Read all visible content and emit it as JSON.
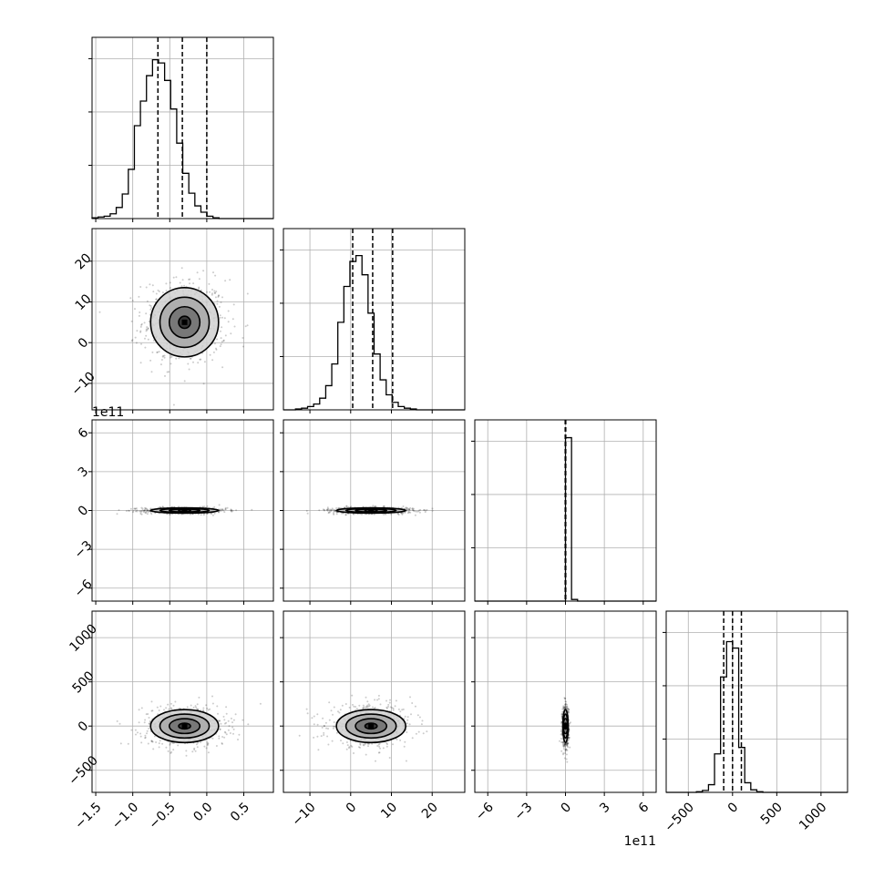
{
  "chart_data": {
    "type": "corner",
    "params": [
      {
        "range": [
          -1.55,
          0.9
        ],
        "ticks": [
          -1.5,
          -1.0,
          -0.5,
          0.0,
          0.5
        ],
        "tick_labels": [
          "−1.5",
          "−1.0",
          "−0.5",
          "0.0",
          "0.5"
        ],
        "quantiles": [
          -0.66,
          -0.33,
          0.0
        ],
        "median": -0.33,
        "center": -0.3,
        "hist_edges_start": -1.55,
        "hist_bin_width": 0.0817,
        "hist_counts": [
          1,
          2,
          3,
          6,
          14,
          31,
          62,
          117,
          148,
          180,
          200,
          196,
          174,
          138,
          95,
          57,
          32,
          16,
          8,
          3,
          1,
          0,
          0,
          0,
          0,
          0,
          0,
          0,
          0,
          0
        ],
        "hist_max": 210
      },
      {
        "range": [
          -16.5,
          28
        ],
        "ticks": [
          -10,
          0,
          10,
          20
        ],
        "tick_labels": [
          "−10",
          "0",
          "10",
          "20"
        ],
        "quantiles": [
          0.5,
          5.4,
          10.3
        ],
        "median": 5.4,
        "center": 5.0,
        "hist_edges_start": -16.5,
        "hist_bin_width": 1.483,
        "hist_counts": [
          0,
          0,
          1,
          2,
          4,
          7,
          14,
          29,
          55,
          105,
          148,
          178,
          185,
          162,
          116,
          67,
          36,
          18,
          9,
          4,
          2,
          1,
          0,
          0,
          0,
          0,
          0,
          0,
          0,
          0
        ],
        "hist_max": 200
      },
      {
        "range": [
          -7.0,
          7.0
        ],
        "ticks": [
          -6,
          -3,
          0,
          3,
          6
        ],
        "tick_labels": [
          "−6",
          "−3",
          "0",
          "3",
          "6"
        ],
        "offset": "1e11",
        "quantiles": [
          -0.02,
          0.0,
          0.02
        ],
        "median": 0.0,
        "center": 0.0,
        "hist_edges_start": -7.0,
        "hist_bin_width": 0.4667,
        "hist_counts": [
          0,
          0,
          0,
          0,
          0,
          0,
          0,
          0,
          0,
          0,
          0,
          0,
          0,
          0,
          0,
          1960,
          20,
          0,
          0,
          0,
          0,
          0,
          0,
          0,
          0,
          0,
          0,
          0,
          0,
          0
        ],
        "hist_max": 2000
      },
      {
        "range": [
          -750,
          1300
        ],
        "ticks": [
          -500,
          0,
          500,
          1000
        ],
        "tick_labels": [
          "−500",
          "0",
          "500",
          "1000"
        ],
        "quantiles": [
          -100,
          0,
          100
        ],
        "median": 0,
        "center": 0,
        "hist_edges_start": -750,
        "hist_bin_width": 68.3,
        "hist_counts": [
          0,
          0,
          0,
          0,
          0,
          1,
          3,
          12,
          60,
          180,
          235,
          225,
          70,
          15,
          4,
          1,
          0,
          0,
          0,
          0,
          0,
          0,
          0,
          0,
          0,
          0,
          0,
          0,
          0,
          0
        ],
        "hist_max": 260
      }
    ],
    "scatter_spread": [
      0.27,
      5.0,
      0.12,
      110
    ],
    "contour_levels": [
      0.5,
      1.0,
      1.5,
      2.0
    ],
    "show_grid": true,
    "quantiles_shown": [
      0.16,
      0.5,
      0.84
    ]
  }
}
